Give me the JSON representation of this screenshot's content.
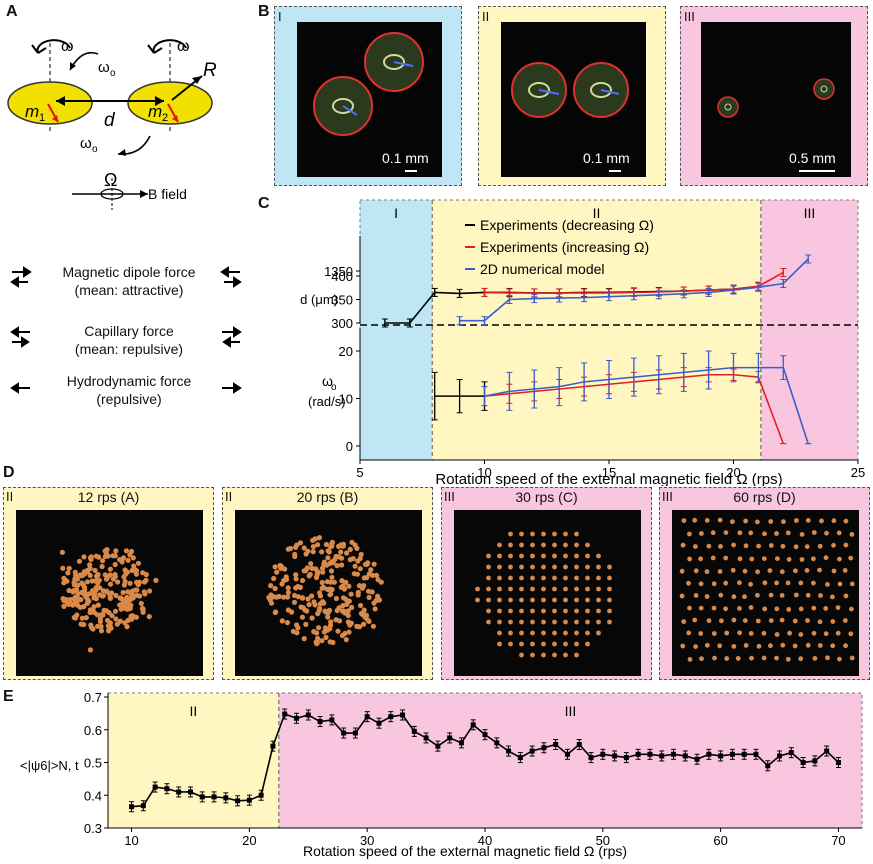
{
  "panels": {
    "A": "A",
    "B": "B",
    "C": "C",
    "D": "D",
    "E": "E"
  },
  "panelA": {
    "omega": "ω",
    "omega_o": "ω",
    "omega_o_sub": "o",
    "R": "R",
    "d": "d",
    "m1": "m",
    "m1_sub": "1",
    "m2": "m",
    "m2_sub": "2",
    "Omega": "Ω",
    "bfield": "B field",
    "forces": [
      {
        "line1": "Magnetic dipole force",
        "line2": "(mean: attractive)"
      },
      {
        "line1": "Capillary force",
        "line2": "(mean: repulsive)"
      },
      {
        "line1": "Hydrodynamic force",
        "line2": "(repulsive)"
      }
    ]
  },
  "panelB": {
    "items": [
      {
        "roman": "I",
        "scale": "0.1 mm"
      },
      {
        "roman": "II",
        "scale": "0.1 mm"
      },
      {
        "roman": "III",
        "scale": "0.5 mm"
      }
    ]
  },
  "panelD": {
    "items": [
      {
        "roman": "II",
        "label": "12 rps (A)"
      },
      {
        "roman": "II",
        "label": "20 rps (B)"
      },
      {
        "roman": "III",
        "label": "30 rps (C)"
      },
      {
        "roman": "III",
        "label": "60 rps (D)"
      }
    ]
  },
  "chart_data": [
    {
      "type": "line",
      "regions": [
        "I",
        "II",
        "III"
      ],
      "region_bounds": [
        [
          5,
          7.9
        ],
        [
          7.9,
          21.1
        ],
        [
          21.1,
          25
        ]
      ],
      "xlabel": "Rotation speed of the external magnetic field Ω (rps)",
      "xticks": [
        5,
        10,
        15,
        20,
        25
      ],
      "xlim": [
        5,
        25
      ],
      "legend": [
        "Experiments (decreasing Ω)",
        "Experiments (increasing Ω)",
        "2D numerical model"
      ],
      "top_axis": {
        "ylabel": "d (μm)",
        "yticks": [
          "300",
          "350",
          "400",
          "1350"
        ],
        "series": [
          {
            "name": "Experiments (decreasing Ω)",
            "color": "#000000",
            "x": [
              6,
              7,
              8,
              9,
              10,
              11,
              12,
              13,
              14,
              15,
              16,
              17,
              18,
              19,
              20,
              21
            ],
            "y": [
              300,
              300,
              365,
              363,
              365,
              365,
              364,
              364,
              365,
              365,
              366,
              367,
              368,
              370,
              372,
              378
            ]
          },
          {
            "name": "Experiments (increasing Ω)",
            "color": "#e02020",
            "x": [
              10,
              11,
              12,
              13,
              14,
              15,
              16,
              17,
              18,
              19,
              20,
              21,
              22
            ],
            "y": [
              365,
              364,
              364,
              364,
              364,
              364,
              365,
              366,
              368,
              370,
              372,
              378,
              1345
            ]
          },
          {
            "name": "2D numerical model",
            "color": "#3a5fcd",
            "x": [
              9,
              10,
              11,
              12,
              13,
              14,
              15,
              16,
              17,
              18,
              19,
              20,
              21,
              22,
              23
            ],
            "y": [
              305,
              305,
              350,
              352,
              353,
              354,
              356,
              358,
              360,
              362,
              365,
              370,
              376,
              384,
              1390
            ]
          }
        ]
      },
      "bottom_axis": {
        "ylabel": "ω",
        "ylabel_sub": "o",
        "ylabel_unit": "(rad/s)",
        "yticks": [
          0,
          10,
          20
        ],
        "ylim": [
          0,
          25
        ],
        "series": [
          {
            "name": "Experiments (decreasing Ω)",
            "color": "#000000",
            "x": [
              8,
              9,
              10
            ],
            "y": [
              10.5,
              10.5,
              10.5
            ],
            "err": [
              5,
              3.5,
              3
            ]
          },
          {
            "name": "Experiments (increasing Ω)",
            "color": "#e02020",
            "x": [
              10,
              11,
              12,
              13,
              14,
              15,
              16,
              17,
              18,
              19,
              20,
              21,
              22
            ],
            "y": [
              10.5,
              11,
              11.5,
              12,
              12.5,
              13,
              13.5,
              14,
              14.5,
              15,
              15,
              14.5,
              0.5
            ],
            "err": [
              2,
              2,
              2,
              2,
              2,
              2,
              2,
              2,
              2,
              1.5,
              1.2,
              1.2,
              0
            ]
          },
          {
            "name": "2D numerical model",
            "color": "#3a5fcd",
            "x": [
              10,
              11,
              12,
              13,
              14,
              15,
              16,
              17,
              18,
              19,
              20,
              21,
              22,
              23
            ],
            "y": [
              10.5,
              11.5,
              12,
              12.5,
              13.5,
              14,
              14.5,
              15,
              15.5,
              16,
              16.5,
              16.5,
              16.5,
              0.5
            ],
            "err": [
              2,
              4,
              4,
              4,
              4,
              4,
              4,
              4,
              4,
              4,
              3,
              3,
              2.5,
              0
            ]
          }
        ]
      }
    },
    {
      "type": "line",
      "regions": [
        "II",
        "III"
      ],
      "region_bounds": [
        [
          8,
          22.5
        ],
        [
          22.5,
          72
        ]
      ],
      "xlabel": "Rotation speed of the external magnetic field Ω (rps)",
      "ylabel": "<|ψ6|>N, t",
      "xticks": [
        10,
        20,
        30,
        40,
        50,
        60,
        70
      ],
      "yticks": [
        0.3,
        0.4,
        0.5,
        0.6,
        0.7
      ],
      "xlim": [
        8,
        72
      ],
      "ylim": [
        0.3,
        0.7
      ],
      "series": [
        {
          "name": "",
          "color": "#000000",
          "x": [
            10,
            11,
            12,
            13,
            14,
            15,
            16,
            17,
            18,
            19,
            20,
            21,
            22,
            23,
            24,
            25,
            26,
            27,
            28,
            29,
            30,
            31,
            32,
            33,
            34,
            35,
            36,
            37,
            38,
            39,
            40,
            41,
            42,
            43,
            44,
            45,
            46,
            47,
            48,
            49,
            50,
            51,
            52,
            53,
            54,
            55,
            56,
            57,
            58,
            59,
            60,
            61,
            62,
            63,
            64,
            65,
            66,
            67,
            68,
            69,
            70
          ],
          "y": [
            0.365,
            0.368,
            0.425,
            0.42,
            0.41,
            0.41,
            0.395,
            0.395,
            0.392,
            0.383,
            0.385,
            0.4,
            0.55,
            0.648,
            0.635,
            0.645,
            0.625,
            0.63,
            0.59,
            0.59,
            0.64,
            0.62,
            0.64,
            0.645,
            0.595,
            0.575,
            0.55,
            0.575,
            0.56,
            0.615,
            0.585,
            0.56,
            0.535,
            0.515,
            0.535,
            0.545,
            0.555,
            0.525,
            0.555,
            0.515,
            0.525,
            0.52,
            0.515,
            0.525,
            0.525,
            0.52,
            0.525,
            0.52,
            0.51,
            0.525,
            0.52,
            0.525,
            0.525,
            0.525,
            0.49,
            0.52,
            0.53,
            0.5,
            0.505,
            0.535,
            0.5
          ]
        }
      ]
    }
  ]
}
